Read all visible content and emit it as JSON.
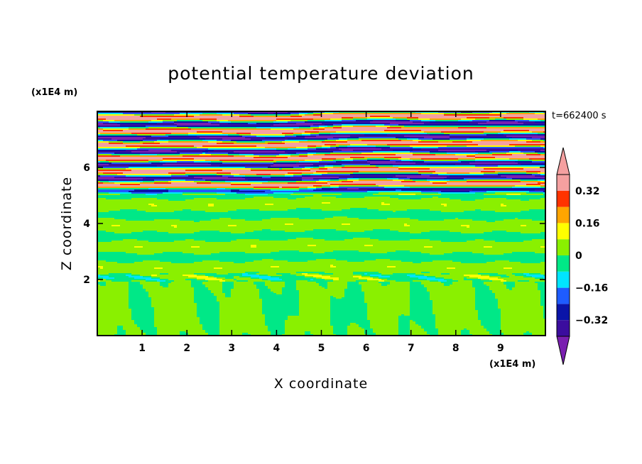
{
  "chart_data": {
    "type": "heatmap",
    "title": "potential temperature deviation",
    "xlabel": "X coordinate",
    "ylabel": "Z coordinate",
    "x_unit": "(x1E4 m)",
    "y_unit": "(x1E4 m)",
    "time_label": "t=662400 s",
    "xlim": [
      0,
      10
    ],
    "ylim": [
      0,
      8
    ],
    "x_ticks": [
      "1",
      "2",
      "3",
      "4",
      "5",
      "6",
      "7",
      "8",
      "9"
    ],
    "y_ticks": [
      "2",
      "4",
      "6"
    ],
    "x_tick_values": [
      1,
      2,
      3,
      4,
      5,
      6,
      7,
      8,
      9
    ],
    "y_tick_values": [
      2,
      4,
      6
    ],
    "colorbar": {
      "levels": [
        -0.4,
        -0.32,
        -0.24,
        -0.16,
        -0.08,
        0,
        0.08,
        0.16,
        0.24,
        0.32,
        0.4
      ],
      "labels": [
        "0.32",
        "0.16",
        "0",
        "−0.16",
        "−0.32"
      ],
      "label_values": [
        0.32,
        0.16,
        0,
        -0.16,
        -0.32
      ],
      "colors": [
        "#7a1fb0",
        "#3b0d9e",
        "#0a14a8",
        "#1e5cff",
        "#00e5ff",
        "#00e887",
        "#8af000",
        "#ffff00",
        "#ffa500",
        "#ff3300",
        "#f5a0a0"
      ]
    },
    "bands": [
      {
        "z": [
          0.0,
          1.9
        ],
        "description": "near-zero values with convective cells"
      },
      {
        "z": [
          1.9,
          2.2
        ],
        "description": "thin alternating layer"
      },
      {
        "z": [
          2.2,
          5.0
        ],
        "description": "weak layered perturbations"
      },
      {
        "z": [
          5.0,
          7.9
        ],
        "description": "strong alternating positive/negative layers"
      }
    ]
  }
}
